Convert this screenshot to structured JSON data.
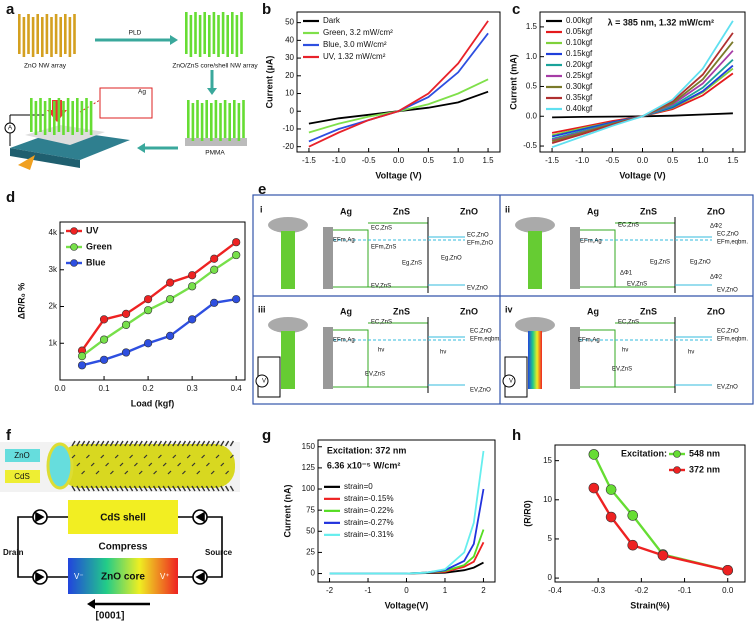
{
  "panel_labels": [
    "a",
    "b",
    "c",
    "d",
    "e",
    "f",
    "g",
    "h"
  ],
  "panel_a": {
    "labels": [
      "ZnO NW array",
      "PLD",
      "ZnO/ZnS core/shell NW array",
      "PMMA",
      "Ag",
      "A"
    ]
  },
  "panel_e": {
    "subpanels": [
      {
        "labels": [
          "i",
          "Ag",
          "ZnS",
          "ZnO",
          "EFm,Ag",
          "EC,ZnS",
          "EFm,ZnS",
          "Eg,ZnS",
          "EV,ZnS",
          "Eg,ZnO",
          "EC,ZnO",
          "EFm,ZnO",
          "EV,ZnO"
        ]
      },
      {
        "labels": [
          "ii",
          "Ag",
          "ZnS",
          "ZnO",
          "EFm,Ag",
          "EC,ZnS",
          "ΔΦ2",
          "EC,ZnO",
          "EFm,eqbm.",
          "Eg,ZnS",
          "Eg,ZnO",
          "ΔΦ1",
          "EV,ZnS",
          "ΔΦ2",
          "EV,ZnO"
        ]
      },
      {
        "labels": [
          "iii",
          "Ag",
          "ZnS",
          "ZnO",
          "EFm,Ag",
          "EC,ZnS",
          "EC,ZnO",
          "EFm,eqbm.",
          "hν",
          "hν",
          "EV,ZnS",
          "EV,ZnO",
          "V"
        ]
      },
      {
        "labels": [
          "iv",
          "Ag",
          "ZnS",
          "ZnO",
          "EC,ZnS",
          "EFm,Ag",
          "EC,ZnO",
          "EFm,eqbm.",
          "hν",
          "hν",
          "EV,ZnS",
          "EV,ZnO",
          "V"
        ]
      }
    ]
  },
  "panel_f": {
    "labels": [
      "ZnO",
      "CdS",
      "CdS shell",
      "Compress",
      "Drain",
      "Source",
      "V⁻",
      "ZnO core",
      "V⁺",
      "[0001]"
    ]
  },
  "chart_data": [
    {
      "type": "line",
      "x": [
        -1.5,
        -1,
        -0.5,
        0,
        0.5,
        1,
        1.5
      ],
      "xlim": [
        -1.7,
        1.7
      ],
      "xticks": [
        -1.5,
        {
          "value": -1,
          "label": "-1.0"
        },
        -0.5,
        {
          "value": 0,
          "label": "0.0"
        },
        0.5,
        {
          "value": 1,
          "label": "1.0"
        },
        1.5
      ],
      "ylim": [
        -23,
        56
      ],
      "yticks": [
        -20,
        -10,
        0,
        10,
        20,
        30,
        40,
        50
      ],
      "xlabel": "Voltage (V)",
      "ylabel": "Current (µA)",
      "legend": "upper left",
      "series": [
        {
          "name": "Dark",
          "color": "#000000",
          "values": [
            -7,
            -4,
            -2,
            0,
            2,
            5,
            11
          ]
        },
        {
          "name": "Green, 3.2 mW/cm²",
          "color": "#7fe04a",
          "values": [
            -12,
            -7,
            -3,
            0,
            4,
            10,
            18
          ]
        },
        {
          "name": "Blue, 3.0 mW/cm²",
          "color": "#2e4fe0",
          "values": [
            -17,
            -10,
            -5,
            0,
            8,
            22,
            44
          ]
        },
        {
          "name": "UV, 1.32 mW/cm²",
          "color": "#e8222a",
          "values": [
            -20,
            -12,
            -5,
            0,
            10,
            27,
            51
          ]
        }
      ]
    },
    {
      "type": "line",
      "x": [
        -1.5,
        -1,
        -0.5,
        0,
        0.5,
        1,
        1.5
      ],
      "xlim": [
        -1.7,
        1.7
      ],
      "xticks": [
        -1.5,
        {
          "value": -1,
          "label": "-1.0"
        },
        -0.5,
        {
          "value": 0,
          "label": "0.0"
        },
        0.5,
        {
          "value": 1,
          "label": "1.0"
        },
        1.5
      ],
      "ylim": [
        -0.6,
        1.75
      ],
      "yticks": [
        -0.5,
        {
          "value": 0,
          "label": "0.0"
        },
        0.5,
        {
          "value": 1,
          "label": "1.0"
        },
        1.5
      ],
      "xlabel": "Voltage (V)",
      "ylabel": "Current (mA)",
      "legend": "upper left",
      "annotations": [
        "λ = 385 nm, 1.32 mW/cm²"
      ],
      "series": [
        {
          "name": "0.00kgf",
          "color": "#000000",
          "values": [
            -0.02,
            -0.01,
            -0.005,
            0,
            0.01,
            0.03,
            0.05
          ]
        },
        {
          "name": "0.05kgf",
          "color": "#e41a1c",
          "values": [
            -0.28,
            -0.18,
            -0.08,
            0,
            0.12,
            0.35,
            0.72
          ]
        },
        {
          "name": "0.10kgf",
          "color": "#7fd13b",
          "values": [
            -0.32,
            -0.2,
            -0.1,
            0,
            0.14,
            0.4,
            0.8
          ]
        },
        {
          "name": "0.15kgf",
          "color": "#1f3fdb",
          "values": [
            -0.34,
            -0.22,
            -0.1,
            0,
            0.15,
            0.42,
            0.85
          ]
        },
        {
          "name": "0.20kgf",
          "color": "#1aa39a",
          "values": [
            -0.38,
            -0.25,
            -0.12,
            0,
            0.17,
            0.48,
            0.95
          ]
        },
        {
          "name": "0.25kgf",
          "color": "#a63ca6",
          "values": [
            -0.4,
            -0.27,
            -0.13,
            0,
            0.2,
            0.55,
            1.1
          ]
        },
        {
          "name": "0.30kgf",
          "color": "#7a7a2a",
          "values": [
            -0.42,
            -0.28,
            -0.13,
            0,
            0.22,
            0.62,
            1.25
          ]
        },
        {
          "name": "0.35kgf",
          "color": "#b03030",
          "values": [
            -0.45,
            -0.3,
            -0.14,
            0,
            0.25,
            0.7,
            1.4
          ]
        },
        {
          "name": "0.40kgf",
          "color": "#5fe0f0",
          "values": [
            -0.52,
            -0.34,
            -0.16,
            0,
            0.28,
            0.8,
            1.6
          ]
        }
      ]
    },
    {
      "type": "line",
      "x": [
        0.05,
        0.1,
        0.15,
        0.2,
        0.25,
        0.3,
        0.35,
        0.4
      ],
      "xlim": [
        0,
        0.42
      ],
      "xticks": [
        {
          "value": 0,
          "label": "0.0"
        },
        0.1,
        0.2,
        0.3,
        0.4
      ],
      "ylim": [
        0,
        4300
      ],
      "yticks": [
        {
          "value": 1000,
          "label": "1k"
        },
        {
          "value": 2000,
          "label": "2k"
        },
        {
          "value": 3000,
          "label": "3k"
        },
        {
          "value": 4000,
          "label": "4k"
        }
      ],
      "xlabel": "Load (kgf)",
      "ylabel": "ΔR/R₀ %",
      "legend": "upper left",
      "markers": true,
      "series": [
        {
          "name": "UV",
          "color": "#ee2222",
          "values": [
            800,
            1650,
            1800,
            2200,
            2650,
            2850,
            3300,
            3750
          ]
        },
        {
          "name": "Green",
          "color": "#77e04a",
          "values": [
            650,
            1100,
            1500,
            1900,
            2200,
            2550,
            3000,
            3400
          ]
        },
        {
          "name": "Blue",
          "color": "#2e4fe0",
          "values": [
            400,
            550,
            750,
            1000,
            1200,
            1650,
            2100,
            2200
          ]
        }
      ]
    },
    {
      "type": "line",
      "x": [
        -2,
        -1,
        0,
        0.5,
        1,
        1.5,
        1.75,
        2
      ],
      "xlim": [
        -2.3,
        2.3
      ],
      "xticks": [
        -2,
        -1,
        0,
        1,
        2
      ],
      "ylim": [
        -10,
        158
      ],
      "yticks": [
        0,
        25,
        50,
        75,
        100,
        125,
        150
      ],
      "xlabel": "Voltage(V)",
      "ylabel": "Current (nA)",
      "legend": "center left",
      "annotations": [
        "Excitation: 372 nm",
        "6.36 x10⁻⁵ W/cm²"
      ],
      "series": [
        {
          "name": "strain=0",
          "color": "#000000",
          "values": [
            0,
            0,
            0,
            0.5,
            1,
            4,
            7,
            13
          ]
        },
        {
          "name": "strain=-0.15%",
          "color": "#ee2222",
          "values": [
            0,
            0,
            0,
            1,
            2,
            8,
            14,
            37
          ]
        },
        {
          "name": "strain=-0.22%",
          "color": "#55dd22",
          "values": [
            0,
            0,
            0,
            1,
            3,
            10,
            20,
            52
          ]
        },
        {
          "name": "strain=-0.27%",
          "color": "#2233dd",
          "values": [
            0,
            0,
            0,
            1,
            4,
            15,
            35,
            100
          ]
        },
        {
          "name": "strain=-0.31%",
          "color": "#66eeee",
          "values": [
            0,
            0,
            0,
            1,
            5,
            25,
            60,
            145
          ]
        }
      ]
    },
    {
      "type": "line",
      "x": [
        -0.31,
        -0.27,
        -0.22,
        -0.15,
        0
      ],
      "xlim": [
        -0.4,
        0.04
      ],
      "xticks": [
        -0.4,
        -0.3,
        -0.2,
        -0.1,
        {
          "value": 0,
          "label": "0.0"
        }
      ],
      "ylim": [
        -0.5,
        17
      ],
      "yticks": [
        0,
        5,
        10,
        15
      ],
      "xlabel": "Strain(%)",
      "ylabel": "(R/R0)",
      "legend": "upper right",
      "legend_title": "Excitation:",
      "markers": true,
      "series": [
        {
          "name": "548 nm",
          "color": "#66dd33",
          "values": [
            15.8,
            11.3,
            8,
            3,
            1
          ]
        },
        {
          "name": "372 nm",
          "color": "#ee2222",
          "values": [
            11.5,
            7.8,
            4.2,
            2.9,
            1
          ]
        }
      ]
    }
  ]
}
